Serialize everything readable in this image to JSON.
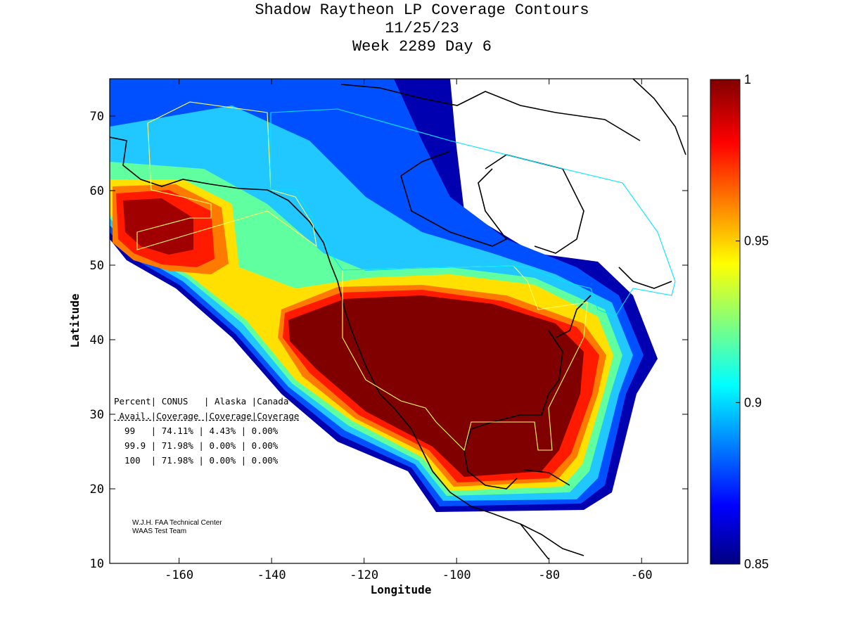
{
  "title": {
    "line1": "Shadow Raytheon LP Coverage Contours",
    "line2": "11/25/23",
    "line3": "Week 2289 Day 6"
  },
  "map": {
    "xlabel": "Longitude",
    "ylabel": "Latitude",
    "xlim": [
      -175,
      -50
    ],
    "ylim": [
      10,
      75
    ],
    "xticks": [
      -160,
      -140,
      -120,
      -100,
      -80,
      -60
    ],
    "yticks": [
      10,
      20,
      30,
      40,
      50,
      60,
      70
    ],
    "colors": {
      "core": "#800000",
      "high": "#ff2000",
      "mid": "#ffd000",
      "low": "#20d0ff",
      "bottom": "#0000a0",
      "regionOutline": "#ffff66",
      "canadaOutline": "#00e5ff"
    }
  },
  "colorbar": {
    "min": 0.85,
    "max": 1,
    "ticks": [
      {
        "value": 1,
        "label": "1"
      },
      {
        "value": 0.95,
        "label": "0.95"
      },
      {
        "value": 0.9,
        "label": "0.9"
      },
      {
        "value": 0.85,
        "label": "0.85"
      }
    ],
    "stops": [
      "#000080",
      "#0000ff",
      "#00ffff",
      "#ffff00",
      "#ff0000",
      "#800000"
    ]
  },
  "stats": {
    "header1": "Percent| CONUS   | Alaska |Canada",
    "header2": " Avail.|Coverage |Coverage|Coverage",
    "rows": [
      "  99   | 74.11% | 4.43% | 0.00%",
      "  99.9 | 71.98% | 0.00% | 0.00%",
      "  100  | 71.98% | 0.00% | 0.00%"
    ]
  },
  "credit": {
    "line1": "W.J.H. FAA Technical Center",
    "line2": "WAAS Test Team"
  }
}
